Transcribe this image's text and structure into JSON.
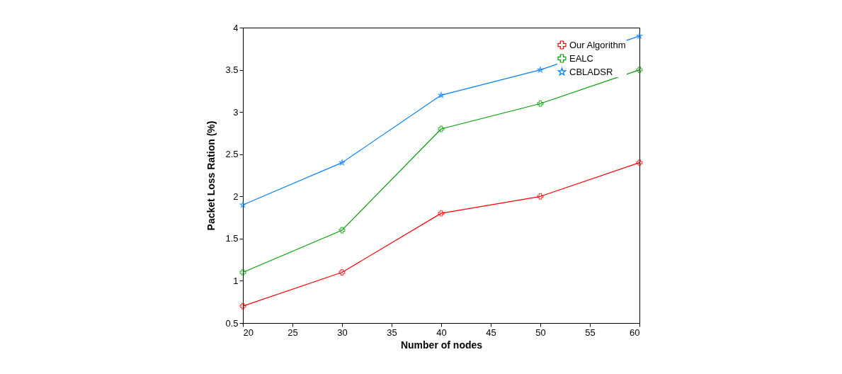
{
  "chart_data": {
    "type": "line",
    "xlabel": "Number of nodes",
    "ylabel": "Packet Loss Ration (%)",
    "x": [
      20,
      30,
      40,
      50,
      60
    ],
    "series": [
      {
        "name": "Our Algorithm",
        "color": "#ff0000",
        "marker": "cross",
        "values": [
          0.7,
          1.1,
          1.8,
          2.0,
          2.4
        ]
      },
      {
        "name": "EALC",
        "color": "#00a000",
        "marker": "cross",
        "values": [
          1.1,
          1.6,
          2.8,
          3.1,
          3.5
        ]
      },
      {
        "name": "CBLADSR",
        "color": "#0080ff",
        "marker": "star",
        "values": [
          1.9,
          2.4,
          3.2,
          3.5,
          3.9
        ]
      }
    ],
    "xlim": [
      20,
      60
    ],
    "xticks": [
      20,
      25,
      30,
      35,
      40,
      45,
      50,
      55,
      60
    ],
    "ylim": [
      0.5,
      4
    ],
    "yticks": [
      0.5,
      {
        "value": 1,
        "label": "1"
      },
      1.5,
      {
        "value": 2,
        "label": "2"
      },
      2.5,
      {
        "value": 3,
        "label": "3"
      },
      3.5,
      {
        "value": 4,
        "label": "4"
      }
    ],
    "grid": false,
    "legend": "top right",
    "line_style": "solid"
  }
}
